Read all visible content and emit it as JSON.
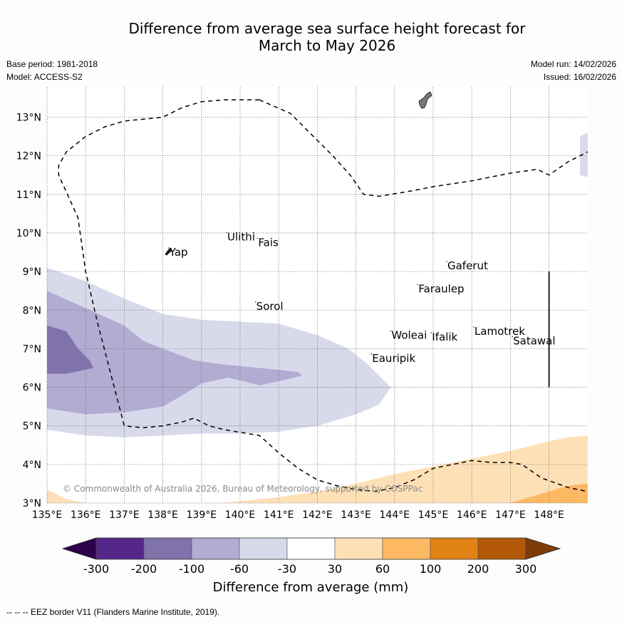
{
  "title": {
    "line1": "Difference from average sea surface height forecast for",
    "line2": "March to May 2026"
  },
  "meta_left": {
    "base_period": "Base period: 1981-2018",
    "model": "Model: ACCESS-S2"
  },
  "meta_right": {
    "model_run": "Model run: 14/02/2026",
    "issued": "Issued: 16/02/2026"
  },
  "footer": "--  --  -- EEZ border V11 (Flanders Marine Institute, 2019).",
  "copyright": "© Commonwealth of Australia 2026, Bureau of Meteorology, supported by COSPPac",
  "chart_data": {
    "type": "heatmap",
    "title": "Difference from average sea surface height forecast for March to May 2026",
    "projection": "lat-lon",
    "xlim": [
      135,
      149
    ],
    "ylim": [
      3,
      13.8
    ],
    "grid": true,
    "x_ticks": [
      135,
      136,
      137,
      138,
      139,
      140,
      141,
      142,
      143,
      144,
      145,
      146,
      147,
      148
    ],
    "x_tick_labels": [
      "135°E",
      "136°E",
      "137°E",
      "138°E",
      "139°E",
      "140°E",
      "141°E",
      "142°E",
      "143°E",
      "144°E",
      "145°E",
      "146°E",
      "147°E",
      "148°E"
    ],
    "y_ticks": [
      3,
      4,
      5,
      6,
      7,
      8,
      9,
      10,
      11,
      12,
      13
    ],
    "y_tick_labels": [
      "3°N",
      "4°N",
      "5°N",
      "6°N",
      "7°N",
      "8°N",
      "9°N",
      "10°N",
      "11°N",
      "12°N",
      "13°N"
    ],
    "colorbar": {
      "label": "Difference from average (mm)",
      "placement": "bottom",
      "extend": "both",
      "ticks": [
        "-300",
        "-200",
        "-100",
        "-60",
        "-30",
        "30",
        "60",
        "100",
        "200",
        "300"
      ],
      "under_color": "#2d004b",
      "over_color": "#7f3b08",
      "bins": [
        {
          "range": [
            -300,
            -200
          ],
          "color": "#542788"
        },
        {
          "range": [
            -200,
            -100
          ],
          "color": "#8073ac"
        },
        {
          "range": [
            -100,
            -60
          ],
          "color": "#b2abd2"
        },
        {
          "range": [
            -60,
            -30
          ],
          "color": "#d8daeb"
        },
        {
          "range": [
            -30,
            30
          ],
          "color": "#ffffff"
        },
        {
          "range": [
            30,
            60
          ],
          "color": "#fee0b6"
        },
        {
          "range": [
            60,
            100
          ],
          "color": "#fdb863"
        },
        {
          "range": [
            100,
            200
          ],
          "color": "#e08214"
        },
        {
          "range": [
            200,
            300
          ],
          "color": "#b35806"
        }
      ]
    },
    "regions": [
      {
        "name": "band -60 to -30 west",
        "bin": "-60 to -30",
        "color": "#d8daeb",
        "polygon": [
          [
            135,
            9.1
          ],
          [
            136,
            8.75
          ],
          [
            137,
            8.3
          ],
          [
            138,
            7.9
          ],
          [
            139,
            7.75
          ],
          [
            140,
            7.7
          ],
          [
            141,
            7.65
          ],
          [
            142,
            7.35
          ],
          [
            142.8,
            7.0
          ],
          [
            143.3,
            6.6
          ],
          [
            143.9,
            6.0
          ],
          [
            143.6,
            5.55
          ],
          [
            143,
            5.3
          ],
          [
            142,
            5.0
          ],
          [
            141,
            4.85
          ],
          [
            140,
            4.8
          ],
          [
            139,
            4.8
          ],
          [
            138,
            4.75
          ],
          [
            137,
            4.7
          ],
          [
            136,
            4.75
          ],
          [
            135,
            4.9
          ]
        ]
      },
      {
        "name": "band -100 to -60 west",
        "bin": "-100 to -60",
        "color": "#b2abd2",
        "polygon": [
          [
            135,
            8.5
          ],
          [
            136,
            8.05
          ],
          [
            137,
            7.6
          ],
          [
            137.5,
            7.2
          ],
          [
            138,
            7.0
          ],
          [
            138.8,
            6.7
          ],
          [
            139.5,
            6.6
          ],
          [
            140.5,
            6.5
          ],
          [
            141.5,
            6.4
          ],
          [
            141.6,
            6.3
          ],
          [
            141.2,
            6.2
          ],
          [
            140.5,
            6.05
          ],
          [
            139.7,
            6.25
          ],
          [
            139,
            6.1
          ],
          [
            138.6,
            5.85
          ],
          [
            138,
            5.5
          ],
          [
            137,
            5.35
          ],
          [
            136,
            5.3
          ],
          [
            135,
            5.45
          ]
        ]
      },
      {
        "name": "band -200 to -100 west",
        "bin": "-200 to -100",
        "color": "#8073ac",
        "polygon": [
          [
            135,
            7.6
          ],
          [
            135.5,
            7.45
          ],
          [
            135.8,
            7.0
          ],
          [
            136.1,
            6.7
          ],
          [
            136.2,
            6.5
          ],
          [
            135.5,
            6.35
          ],
          [
            135,
            6.35
          ]
        ]
      },
      {
        "name": "band -60 to -30 northeast",
        "bin": "-60 to -30",
        "color": "#d8daeb",
        "polygon": [
          [
            148.8,
            12.5
          ],
          [
            149,
            12.6
          ],
          [
            149,
            11.45
          ],
          [
            148.8,
            11.5
          ]
        ]
      },
      {
        "name": "band 30 to 60 south",
        "bin": "30 to 60",
        "color": "#fee0b6",
        "polygon": [
          [
            135,
            3.35
          ],
          [
            135.5,
            3.1
          ],
          [
            136,
            3.0
          ],
          [
            139.5,
            3.0
          ],
          [
            141,
            3.15
          ],
          [
            142,
            3.3
          ],
          [
            143,
            3.5
          ],
          [
            144,
            3.75
          ],
          [
            145,
            3.95
          ],
          [
            146,
            4.15
          ],
          [
            147,
            4.35
          ],
          [
            148,
            4.6
          ],
          [
            148.5,
            4.7
          ],
          [
            149,
            4.75
          ],
          [
            149,
            3.0
          ],
          [
            135,
            3.0
          ]
        ]
      },
      {
        "name": "band 60 to 100 southeast",
        "bin": "60 to 100",
        "color": "#fdb863",
        "polygon": [
          [
            147,
            3.0
          ],
          [
            147.5,
            3.15
          ],
          [
            148,
            3.3
          ],
          [
            148.5,
            3.45
          ],
          [
            149,
            3.5
          ],
          [
            149,
            3.0
          ]
        ]
      }
    ],
    "eez_border": {
      "style": "dashed",
      "points": [
        [
          140.5,
          13.45
        ],
        [
          140.1,
          13.45
        ],
        [
          139.6,
          13.45
        ],
        [
          139,
          13.4
        ],
        [
          138.5,
          13.25
        ],
        [
          138,
          13.0
        ],
        [
          137,
          12.9
        ],
        [
          136.5,
          12.75
        ],
        [
          136,
          12.5
        ],
        [
          135.5,
          12.1
        ],
        [
          135.3,
          11.75
        ],
        [
          135.3,
          11.5
        ],
        [
          135.8,
          10.4
        ],
        [
          136.0,
          9.0
        ],
        [
          136.3,
          7.7
        ],
        [
          137.0,
          5.0
        ],
        [
          137.5,
          4.95
        ],
        [
          138,
          5.0
        ],
        [
          138.5,
          5.1
        ],
        [
          138.8,
          5.2
        ],
        [
          139.2,
          5.0
        ],
        [
          139.6,
          4.9
        ],
        [
          140.2,
          4.8
        ],
        [
          140.5,
          4.75
        ],
        [
          141,
          4.3
        ],
        [
          141.5,
          3.9
        ],
        [
          142,
          3.6
        ],
        [
          142.5,
          3.45
        ],
        [
          143,
          3.35
        ],
        [
          143.5,
          3.3
        ],
        [
          144,
          3.4
        ],
        [
          144.5,
          3.6
        ],
        [
          145,
          3.9
        ],
        [
          145.5,
          4.0
        ],
        [
          146,
          4.1
        ],
        [
          146.5,
          4.05
        ],
        [
          147,
          4.05
        ],
        [
          147.3,
          4.0
        ],
        [
          147.8,
          3.65
        ],
        [
          148.5,
          3.4
        ],
        [
          149,
          3.3
        ]
      ]
    },
    "eez_border_north": {
      "style": "dashed",
      "points": [
        [
          140.5,
          13.45
        ],
        [
          141.3,
          13.1
        ],
        [
          142.4,
          12.0
        ],
        [
          142.85,
          11.5
        ],
        [
          143.2,
          11.0
        ],
        [
          143.6,
          10.95
        ],
        [
          144.5,
          11.1
        ],
        [
          145,
          11.2
        ],
        [
          146,
          11.35
        ],
        [
          147,
          11.55
        ],
        [
          147.7,
          11.65
        ],
        [
          148.0,
          11.5
        ],
        [
          148.5,
          11.85
        ],
        [
          148.8,
          12.0
        ],
        [
          149,
          12.1
        ]
      ]
    },
    "places": [
      {
        "name": "Yap",
        "lon": 138.15,
        "lat": 9.5
      },
      {
        "name": "Ulithi",
        "lon": 139.65,
        "lat": 9.9
      },
      {
        "name": "Fais",
        "lon": 140.45,
        "lat": 9.75
      },
      {
        "name": "Sorol",
        "lon": 140.4,
        "lat": 8.1
      },
      {
        "name": "Gaferut",
        "lon": 145.35,
        "lat": 9.15
      },
      {
        "name": "Faraulep",
        "lon": 144.6,
        "lat": 8.55
      },
      {
        "name": "Woleai",
        "lon": 143.9,
        "lat": 7.35
      },
      {
        "name": "Ifalik",
        "lon": 144.95,
        "lat": 7.3
      },
      {
        "name": "Lamotrek",
        "lon": 146.05,
        "lat": 7.45
      },
      {
        "name": "Satawal",
        "lon": 147.05,
        "lat": 7.2
      },
      {
        "name": "Eauripik",
        "lon": 143.4,
        "lat": 6.75
      }
    ],
    "meridian_segment": {
      "lon": 148.0,
      "lat_range": [
        6.0,
        9.0
      ]
    },
    "land_features": [
      "Yap island",
      "Guam"
    ]
  }
}
